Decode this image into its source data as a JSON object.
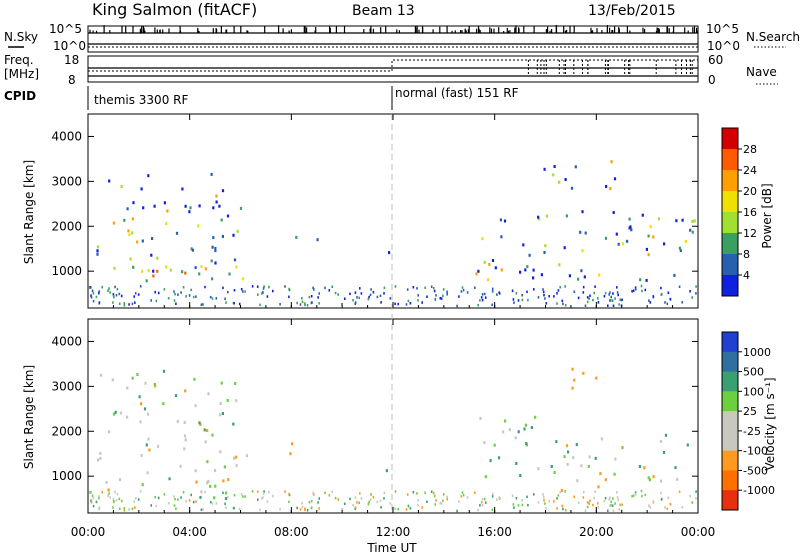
{
  "header": {
    "station": "King Salmon (fitACF)",
    "beam": "Beam 13",
    "date": "13/Feb/2015"
  },
  "strip_labels": {
    "left_nsky": "N.Sky",
    "left_freq": "Freq.",
    "left_freq_unit": "[MHz]",
    "left_cpid": "CPID",
    "right_nsearch": "N.Search",
    "right_nave": "Nave",
    "nsky_top": "10^5",
    "nsky_bottom": "10^0",
    "nsearch_top": "10^5",
    "nsearch_bottom": "10^0",
    "freq_top": "18",
    "freq_bottom": "8",
    "nave_top": "60",
    "nave_bottom": "0"
  },
  "cpid_segments": [
    {
      "label": "themis 3300 RF",
      "start_hour": 0
    },
    {
      "label": "normal (fast) 151 RF",
      "start_hour": 12
    }
  ],
  "panels": {
    "power": {
      "ylabel": "Slant Range [km]",
      "colorbar_label": "Power [dB]",
      "colorbar_ticks": [
        "28",
        "24",
        "20",
        "16",
        "12",
        "8",
        "4"
      ],
      "colorbar_colors": [
        "#d40000",
        "#ff5a00",
        "#ff9f00",
        "#f0e000",
        "#a0e030",
        "#3aa060",
        "#2860b0",
        "#1020e0"
      ]
    },
    "velocity": {
      "ylabel": "Slant Range [km]",
      "colorbar_label": "Velocity [m s⁻¹]",
      "colorbar_ticks": [
        "1000",
        "500",
        "100",
        "25",
        "-25",
        "-100",
        "-500",
        "-1000"
      ],
      "colorbar_colors": [
        "#2040d0",
        "#3070a0",
        "#3aa070",
        "#6ad040",
        "#c8c8c0",
        "#c8c8c0",
        "#ff9a20",
        "#ff7000",
        "#e83010"
      ]
    }
  },
  "chart_data": {
    "type": "heatmap",
    "title": "King Salmon (fitACF) Beam 13 13/Feb/2015",
    "xlabel": "Time UT",
    "ylabel": "Slant Range [km]",
    "x_range_hours": [
      0,
      24
    ],
    "x_ticks": [
      "00:00",
      "04:00",
      "08:00",
      "12:00",
      "16:00",
      "20:00",
      "00:00"
    ],
    "y_range_km": [
      180,
      4500
    ],
    "y_ticks": [
      1000,
      2000,
      3000,
      4000
    ],
    "grid": false,
    "power_regions": [
      {
        "t0": 0.3,
        "t1": 6.0,
        "r0": 800,
        "r1": 3200,
        "level": "mixed",
        "note_power_db": 10
      },
      {
        "t0": 0.3,
        "t1": 6.2,
        "r0": 850,
        "r1": 1300,
        "level": "high",
        "note_power_db": 20
      },
      {
        "t0": 7.8,
        "t1": 9.0,
        "r0": 1500,
        "r1": 1800,
        "level": "low",
        "note_power_db": 10
      },
      {
        "t0": 11.4,
        "t1": 12.0,
        "r0": 1000,
        "r1": 1500,
        "level": "mixed",
        "note_power_db": 12
      },
      {
        "t0": 15.2,
        "t1": 23.9,
        "r0": 800,
        "r1": 2500,
        "level": "mixed",
        "note_power_db": 12
      },
      {
        "t0": 17.9,
        "t1": 20.8,
        "r0": 2700,
        "r1": 3500,
        "level": "mixed",
        "note_power_db": 14
      }
    ],
    "velocity_regions": [
      {
        "t0": 0.3,
        "t1": 5.8,
        "r0": 500,
        "r1": 3400,
        "velocity_ms": 0
      },
      {
        "t0": 4.2,
        "t1": 6.4,
        "r0": 900,
        "r1": 1600,
        "velocity_ms": -200
      },
      {
        "t0": 7.6,
        "t1": 9.0,
        "r0": 1500,
        "r1": 1800,
        "velocity_ms": -250
      },
      {
        "t0": 11.4,
        "t1": 12.0,
        "r0": 1000,
        "r1": 1400,
        "velocity_ms": 300
      },
      {
        "t0": 15.2,
        "t1": 18.6,
        "r0": 1000,
        "r1": 2500,
        "velocity_ms": 150
      },
      {
        "t0": 18.6,
        "t1": 23.9,
        "r0": 700,
        "r1": 2000,
        "velocity_ms": 0
      },
      {
        "t0": 18.9,
        "t1": 20.5,
        "r0": 2800,
        "r1": 3500,
        "velocity_ms": -300
      }
    ]
  },
  "colors": {
    "axis": "#000000",
    "dashed_line": "#bbbbbb",
    "background": "#ffffff"
  }
}
